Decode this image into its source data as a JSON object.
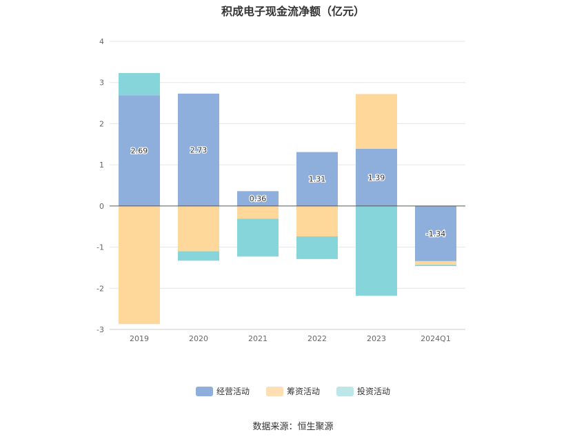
{
  "chart_data": {
    "type": "bar",
    "stacked": true,
    "title": "积成电子现金流净额（亿元）",
    "categories": [
      "2019",
      "2020",
      "2021",
      "2022",
      "2023",
      "2024Q1"
    ],
    "ylim": [
      -3,
      4
    ],
    "yticks": [
      "4",
      "3",
      "2",
      "1",
      "0",
      "-1",
      "-2",
      "-3"
    ],
    "ytick_values": [
      4,
      3,
      2,
      1,
      0,
      -1,
      -2,
      -3
    ],
    "series": [
      {
        "name": "经营活动",
        "color": "#8eaedc",
        "values": [
          2.69,
          2.73,
          0.36,
          1.31,
          1.39,
          -1.34
        ],
        "labels": [
          "2.69",
          "2.73",
          "0.36",
          "1.31",
          "1.39",
          "-1.34"
        ]
      },
      {
        "name": "筹资活动",
        "color": "#fed79a",
        "values": [
          -2.87,
          -1.1,
          -0.31,
          -0.74,
          1.33,
          -0.09
        ]
      },
      {
        "name": "投资活动",
        "color": "#86d5db",
        "values": [
          0.54,
          -0.23,
          -0.92,
          -0.55,
          -2.18,
          -0.03
        ]
      }
    ],
    "legend_position": "bottom-center",
    "grid": true
  },
  "legend": {
    "items": [
      "经营活动",
      "筹资活动",
      "投资活动"
    ],
    "colors": [
      "#8eaedc",
      "#fedfb3",
      "#bde6e9"
    ]
  },
  "source": "数据来源：恒生聚源"
}
